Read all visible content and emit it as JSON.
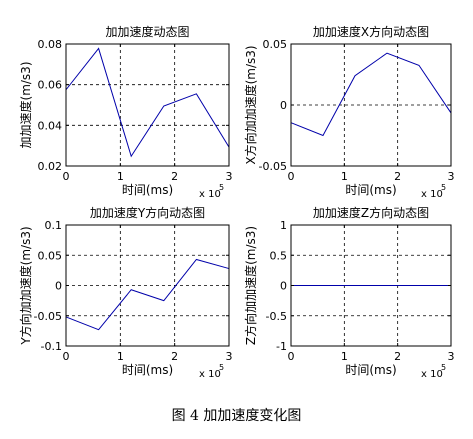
{
  "caption": "图 4  加加速度变化图",
  "chart_data": [
    {
      "type": "line",
      "title": "加加速度动态图",
      "xlabel": "时间(ms)",
      "ylabel": "加加速度(m/s3)",
      "x_multiplier": "x 10",
      "x_multiplier_exp": "5",
      "xlim": [
        0,
        3
      ],
      "ylim": [
        0.02,
        0.08
      ],
      "xticks": [
        "0",
        "1",
        "2",
        "3"
      ],
      "yticks": [
        "0.02",
        "0.04",
        "0.06",
        "0.08"
      ],
      "grid": true,
      "x": [
        0,
        0.6,
        1.2,
        1.8,
        2.4,
        3.0
      ],
      "y": [
        0.0575,
        0.0778,
        0.0248,
        0.0495,
        0.0555,
        0.0293
      ],
      "color": "#0000aa"
    },
    {
      "type": "line",
      "title": "加加速度X方向动态图",
      "xlabel": "时间(ms)",
      "ylabel": "X方向加加速度(m/s3)",
      "x_multiplier": "x 10",
      "x_multiplier_exp": "5",
      "xlim": [
        0,
        3
      ],
      "ylim": [
        -0.05,
        0.05
      ],
      "xticks": [
        "0",
        "1",
        "2",
        "3"
      ],
      "yticks": [
        "-0.05",
        "0",
        "0.05"
      ],
      "grid": true,
      "x": [
        0,
        0.6,
        1.2,
        1.8,
        2.4,
        3.0
      ],
      "y": [
        -0.0145,
        -0.025,
        0.024,
        0.0425,
        0.0325,
        -0.0065
      ],
      "color": "#0000aa"
    },
    {
      "type": "line",
      "title": "加加速度Y方向动态图",
      "xlabel": "时间(ms)",
      "ylabel": "Y方向加加速度(m/s3)",
      "x_multiplier": "x 10",
      "x_multiplier_exp": "5",
      "xlim": [
        0,
        3
      ],
      "ylim": [
        -0.1,
        0.1
      ],
      "xticks": [
        "0",
        "1",
        "2",
        "3"
      ],
      "yticks": [
        "-0.1",
        "-0.05",
        "0",
        "0.05",
        "0.1"
      ],
      "grid": true,
      "x": [
        0,
        0.6,
        1.2,
        1.8,
        2.4,
        3.0
      ],
      "y": [
        -0.052,
        -0.073,
        -0.007,
        -0.025,
        0.043,
        0.028
      ],
      "color": "#0000aa"
    },
    {
      "type": "line",
      "title": "加加速度Z方向动态图",
      "xlabel": "时间(ms)",
      "ylabel": "Z方向加加速度(m/s3)",
      "x_multiplier": "x 10",
      "x_multiplier_exp": "5",
      "xlim": [
        0,
        3
      ],
      "ylim": [
        -1,
        1
      ],
      "xticks": [
        "0",
        "1",
        "2",
        "3"
      ],
      "yticks": [
        "-1",
        "-0.5",
        "0",
        "0.5",
        "1"
      ],
      "grid": true,
      "x": [
        0,
        0.6,
        1.2,
        1.8,
        2.4,
        3.0
      ],
      "y": [
        0,
        0,
        0,
        0,
        0,
        0
      ],
      "color": "#0000aa"
    }
  ]
}
